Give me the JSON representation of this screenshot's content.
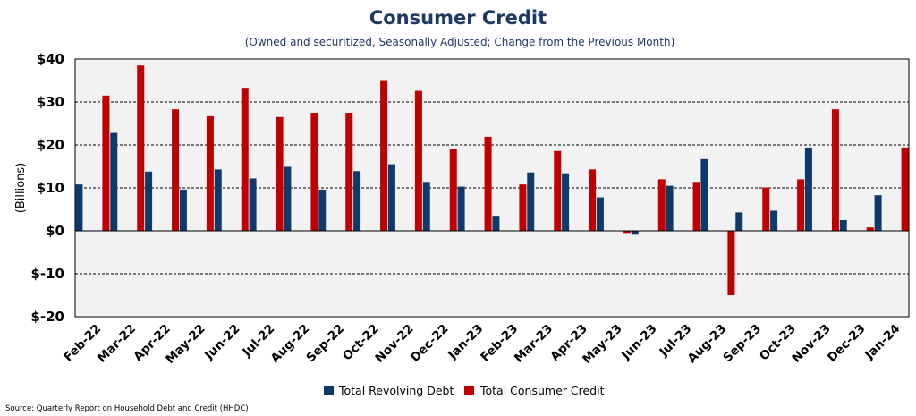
{
  "chart_data": {
    "type": "bar",
    "title": "Consumer Credit",
    "subtitle": "(Owned and securitized, Seasonally Adjusted; Change from the Previous Month)",
    "ylabel": "(Billions)",
    "xlabel": "",
    "ylim": [
      -20,
      40
    ],
    "yticks": [
      {
        "value": 40,
        "label": "$40"
      },
      {
        "value": 30,
        "label": "$30"
      },
      {
        "value": 20,
        "label": "$20"
      },
      {
        "value": 10,
        "label": "$10"
      },
      {
        "value": 0,
        "label": "$0"
      },
      {
        "value": -10,
        "label": "$-10"
      },
      {
        "value": -20,
        "label": "$-20"
      }
    ],
    "categories": [
      "Feb-22",
      "Mar-22",
      "Apr-22",
      "May-22",
      "Jun-22",
      "Jul-22",
      "Aug-22",
      "Sep-22",
      "Oct-22",
      "Nov-22",
      "Dec-22",
      "Jan-23",
      "Feb-23",
      "Mar-23",
      "Apr-23",
      "May-23",
      "Jun-23",
      "Jul-23",
      "Aug-23",
      "Sep-23",
      "Oct-23",
      "Nov-23",
      "Dec-23",
      "Jan-24"
    ],
    "series": [
      {
        "name": "Total Revolving Debt",
        "color": "#0d3a6b",
        "values": [
          10.8,
          22.8,
          13.8,
          9.6,
          14.3,
          12.2,
          14.9,
          9.6,
          13.9,
          15.5,
          11.4,
          10.3,
          3.3,
          13.6,
          13.4,
          7.8,
          -0.9,
          10.5,
          16.7,
          4.3,
          4.7,
          19.4,
          2.5,
          8.3
        ]
      },
      {
        "name": "Total Consumer Credit",
        "color": "#c00000",
        "values": [
          31.5,
          38.5,
          28.3,
          26.7,
          33.3,
          26.5,
          27.5,
          27.5,
          35.1,
          32.6,
          19.0,
          21.9,
          10.8,
          18.6,
          14.3,
          -0.7,
          12.0,
          11.4,
          -15.0,
          10.1,
          12.0,
          28.3,
          0.8,
          19.4
        ]
      }
    ],
    "grid": true,
    "legend_position": "bottom",
    "source": "Source: Quarterly Report on Household Debt and Credit (HHDC)"
  }
}
